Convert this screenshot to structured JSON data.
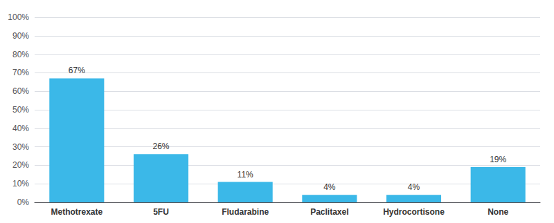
{
  "chart_data": {
    "type": "bar",
    "categories": [
      "Methotrexate",
      "5FU",
      "Fludarabine",
      "Paclitaxel",
      "Hydrocortisone",
      "None"
    ],
    "values": [
      67,
      26,
      11,
      4,
      4,
      19
    ],
    "value_labels": [
      "67%",
      "26%",
      "11%",
      "4%",
      "4%",
      "19%"
    ],
    "data_labels": true,
    "color": "#3bb8e8",
    "ylim": [
      0,
      100
    ],
    "yticks": [
      {
        "value": 0,
        "label": "0%"
      },
      {
        "value": 10,
        "label": "10%"
      },
      {
        "value": 20,
        "label": "20%"
      },
      {
        "value": 30,
        "label": "30%"
      },
      {
        "value": 40,
        "label": "40%"
      },
      {
        "value": 50,
        "label": "50%"
      },
      {
        "value": 60,
        "label": "60%"
      },
      {
        "value": 70,
        "label": "70%"
      },
      {
        "value": 80,
        "label": "80%"
      },
      {
        "value": 90,
        "label": "90%"
      },
      {
        "value": 100,
        "label": "100%"
      }
    ],
    "grid": true
  }
}
